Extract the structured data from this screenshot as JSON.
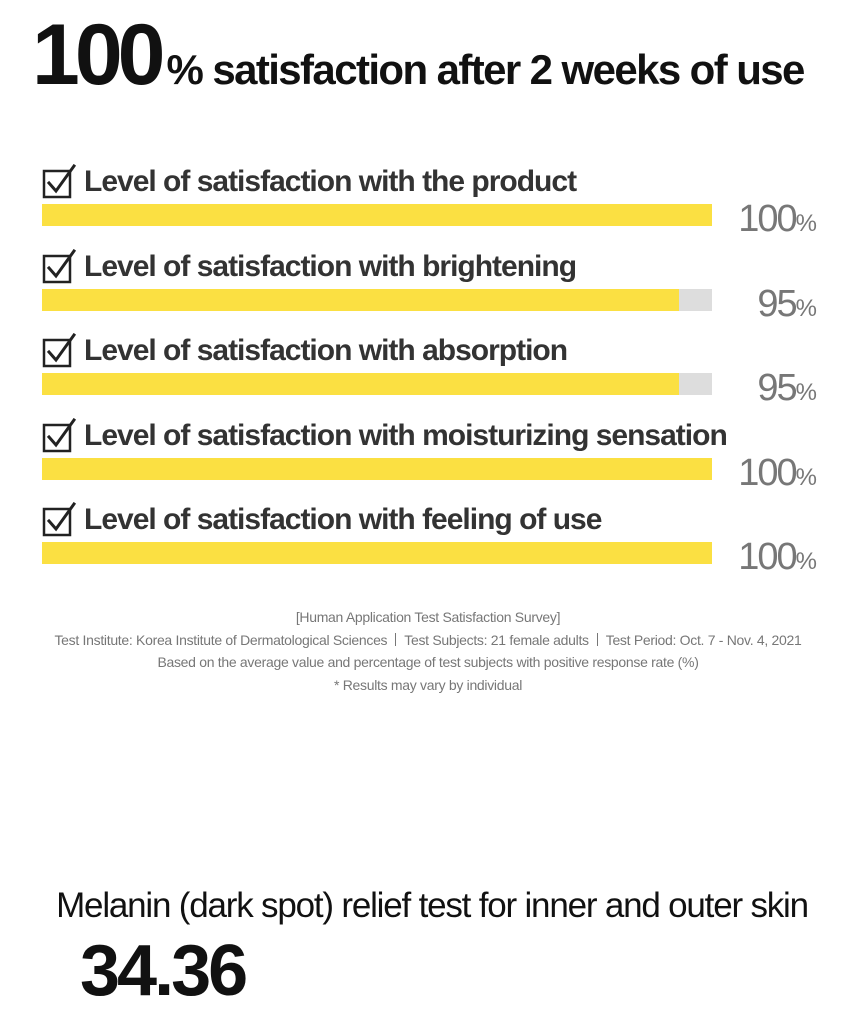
{
  "headline": {
    "big": "100",
    "rest": "% satisfaction after 2 weeks of use"
  },
  "chart_data": {
    "type": "bar",
    "orientation": "horizontal",
    "value_unit": "%",
    "xlim": [
      0,
      100
    ],
    "colors": {
      "fill": "#fbe042",
      "track": "#dddddd"
    },
    "categories": [
      "Level of satisfaction with the product",
      "Level of satisfaction with brightening",
      "Level of satisfaction with absorption",
      "Level of satisfaction with moisturizing sensation",
      "Level of satisfaction with feeling of use"
    ],
    "values": [
      100,
      95,
      95,
      100,
      100
    ],
    "value_labels": [
      "100",
      "95",
      "95",
      "100",
      "100"
    ],
    "percent_symbol": "%"
  },
  "notes": {
    "title": "[Human Application Test Satisfaction Survey]",
    "institute": "Test Institute: Korea Institute of Dermatological Sciences",
    "subjects": "Test Subjects: 21 female adults",
    "period": "Test Period: Oct. 7 - Nov. 4, 2021",
    "basis": "Based on the average value and percentage of test subjects with positive response rate (%)",
    "disclaimer": "* Results may vary by individual"
  },
  "next_section": {
    "title": "Melanin (dark spot) relief test for inner and outer skin",
    "partial_stat": "34.36"
  }
}
